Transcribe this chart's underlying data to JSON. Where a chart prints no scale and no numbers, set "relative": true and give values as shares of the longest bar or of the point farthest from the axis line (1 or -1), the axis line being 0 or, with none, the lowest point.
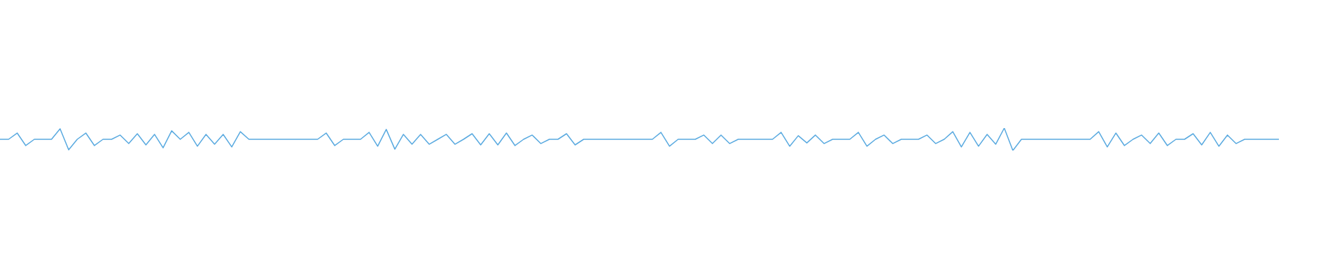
{
  "chart_data": {
    "type": "line",
    "relative": true,
    "grid": false,
    "legend": false,
    "categories": [
      null,
      null,
      null,
      null,
      null,
      null,
      null,
      null,
      null,
      null,
      null,
      null,
      null,
      null,
      null,
      null,
      null,
      null,
      null,
      null,
      null,
      null,
      null,
      null,
      null,
      null,
      null,
      null,
      null,
      null,
      null,
      null,
      null,
      null,
      null,
      null,
      null,
      null,
      null,
      null,
      null,
      null,
      null,
      null,
      null,
      null,
      null,
      null,
      null,
      null,
      null,
      null,
      null,
      null,
      null,
      null,
      null,
      null,
      null,
      null,
      null,
      null,
      null,
      null,
      null,
      null,
      null,
      null,
      null,
      null,
      null,
      null,
      null,
      null,
      null,
      null,
      null,
      null,
      null,
      null,
      null,
      null,
      null,
      null,
      null,
      null,
      null,
      null,
      null,
      null,
      null,
      null,
      null,
      null,
      null,
      null,
      null,
      null,
      null,
      null,
      null,
      null,
      null,
      null,
      null,
      null,
      null,
      null,
      null,
      null,
      null,
      null,
      null,
      null,
      null,
      null,
      null,
      null,
      null,
      null,
      null,
      null,
      null,
      null,
      null,
      null,
      null,
      null,
      null,
      null,
      null,
      null,
      null,
      null,
      null,
      null,
      null,
      null,
      null,
      null,
      null,
      null,
      null,
      null,
      null,
      null,
      null,
      null,
      null,
      null
    ],
    "series": [
      {
        "color": "#5aaae0",
        "values": [
          0.5,
          0.5,
          0.78,
          0.22,
          0.5,
          0.5,
          0.5,
          0.97,
          0.03,
          0.5,
          0.78,
          0.22,
          0.5,
          0.5,
          0.69,
          0.31,
          0.75,
          0.25,
          0.72,
          0.12,
          0.88,
          0.5,
          0.81,
          0.19,
          0.72,
          0.28,
          0.72,
          0.16,
          0.84,
          0.5,
          0.5,
          0.5,
          0.5,
          0.5,
          0.5,
          0.5,
          0.5,
          0.5,
          0.78,
          0.22,
          0.5,
          0.5,
          0.5,
          0.81,
          0.19,
          0.94,
          0.06,
          0.72,
          0.28,
          0.72,
          0.28,
          0.5,
          0.72,
          0.28,
          0.5,
          0.75,
          0.25,
          0.75,
          0.25,
          0.78,
          0.22,
          0.5,
          0.69,
          0.31,
          0.5,
          0.5,
          0.75,
          0.25,
          0.5,
          0.5,
          0.5,
          0.5,
          0.5,
          0.5,
          0.5,
          0.5,
          0.5,
          0.81,
          0.19,
          0.5,
          0.5,
          0.5,
          0.69,
          0.31,
          0.69,
          0.31,
          0.5,
          0.5,
          0.5,
          0.5,
          0.5,
          0.81,
          0.19,
          0.66,
          0.34,
          0.69,
          0.31,
          0.5,
          0.5,
          0.5,
          0.81,
          0.19,
          0.5,
          0.69,
          0.31,
          0.5,
          0.5,
          0.5,
          0.69,
          0.31,
          0.5,
          0.84,
          0.16,
          0.81,
          0.19,
          0.72,
          0.28,
          1,
          0,
          0.5,
          0.5,
          0.5,
          0.5,
          0.5,
          0.5,
          0.5,
          0.5,
          0.5,
          0.84,
          0.16,
          0.78,
          0.22,
          0.5,
          0.69,
          0.31,
          0.78,
          0.22,
          0.5,
          0.5,
          0.75,
          0.25,
          0.81,
          0.19,
          0.69,
          0.31,
          0.5,
          0.5,
          0.5,
          0.5,
          0.5
        ]
      }
    ]
  }
}
